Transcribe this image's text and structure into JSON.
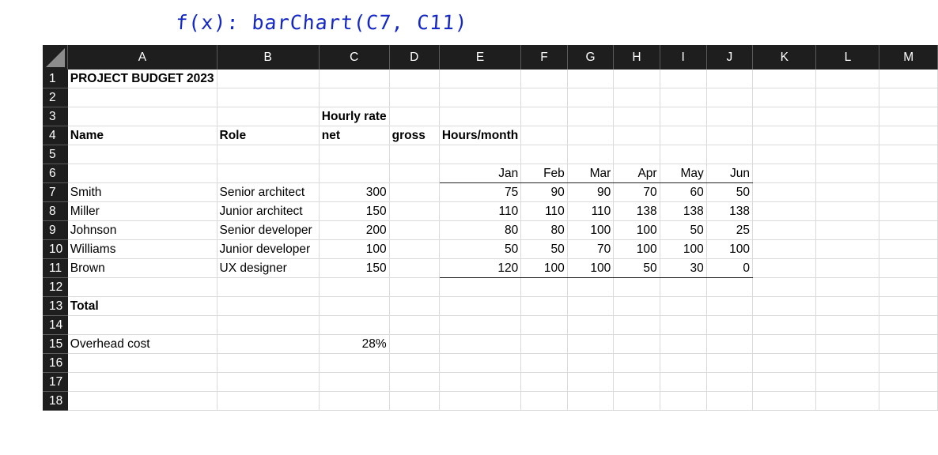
{
  "formula_bar": {
    "text": "f(x): barChart(C7, C11)"
  },
  "columns": [
    "A",
    "B",
    "C",
    "D",
    "E",
    "F",
    "G",
    "H",
    "I",
    "J",
    "K",
    "L",
    "M"
  ],
  "rows": [
    "1",
    "2",
    "3",
    "4",
    "5",
    "6",
    "7",
    "8",
    "9",
    "10",
    "11",
    "12",
    "13",
    "14",
    "15",
    "16",
    "17",
    "18"
  ],
  "cells": {
    "A1": "PROJECT BUDGET 2023",
    "C3": "Hourly rate",
    "A4": "Name",
    "B4": "Role",
    "C4": "net",
    "D4": "gross",
    "E4": "Hours/month",
    "E6": "Jan",
    "F6": "Feb",
    "G6": "Mar",
    "H6": "Apr",
    "I6": "May",
    "J6": "Jun",
    "A7": "Smith",
    "B7": "Senior architect",
    "C7": "300",
    "E7": "75",
    "F7": "90",
    "G7": "90",
    "H7": "70",
    "I7": "60",
    "J7": "50",
    "A8": "Miller",
    "B8": "Junior architect",
    "C8": "150",
    "E8": "110",
    "F8": "110",
    "G8": "110",
    "H8": "138",
    "I8": "138",
    "J8": "138",
    "A9": "Johnson",
    "B9": "Senior developer",
    "C9": "200",
    "E9": "80",
    "F9": "80",
    "G9": "100",
    "H9": "100",
    "I9": "50",
    "J9": "25",
    "A10": "Williams",
    "B10": "Junior developer",
    "C10": "100",
    "E10": "50",
    "F10": "50",
    "G10": "70",
    "H10": "100",
    "I10": "100",
    "J10": "100",
    "A11": "Brown",
    "B11": "UX designer",
    "C11": "150",
    "E11": "120",
    "F11": "100",
    "G11": "100",
    "H11": "50",
    "I11": "30",
    "J11": "0",
    "A13": "Total",
    "A15": "Overhead cost",
    "C15": "28%"
  }
}
